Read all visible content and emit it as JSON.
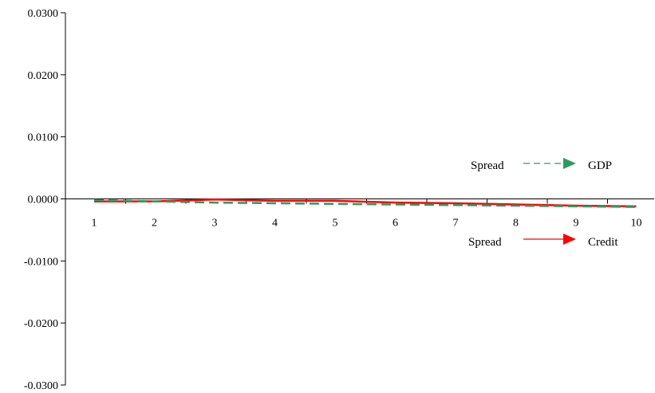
{
  "chart_data": {
    "type": "line",
    "title": "",
    "xlabel": "",
    "ylabel": "",
    "categories": [
      "1",
      "2",
      "3",
      "4",
      "5",
      "6",
      "7",
      "8",
      "9",
      "10"
    ],
    "ylim": [
      -0.03,
      0.03
    ],
    "yticks": [
      0.03,
      0.02,
      0.01,
      0.0,
      -0.01,
      -0.02,
      -0.03
    ],
    "ytick_labels": [
      "0.0300",
      "0.0200",
      "0.0100",
      "0.0000",
      "-0.0100",
      "-0.0200",
      "-0.0300"
    ],
    "grid": false,
    "series": [
      {
        "name": "Spread → Credit",
        "style": "solid",
        "color": "#ff0000",
        "values": [
          -0.0004,
          -0.0004,
          -0.0001,
          -0.0003,
          -0.0003,
          -0.0006,
          -0.0007,
          -0.0009,
          -0.0011,
          -0.0012
        ]
      },
      {
        "name": "Spread → GDP",
        "style": "dashed",
        "color": "#2e9b5e",
        "values": [
          -0.0002,
          -0.0004,
          -0.0006,
          -0.0007,
          -0.0008,
          -0.0009,
          -0.001,
          -0.0011,
          -0.0012,
          -0.0013
        ]
      }
    ],
    "legend": {
      "placement": "center-right",
      "entries": [
        {
          "from": "Spread",
          "to": "GDP",
          "color": "#2e9b5e",
          "style": "dashed"
        },
        {
          "from": "Spread",
          "to": "Credit",
          "color": "#ff0000",
          "style": "solid"
        }
      ]
    }
  }
}
